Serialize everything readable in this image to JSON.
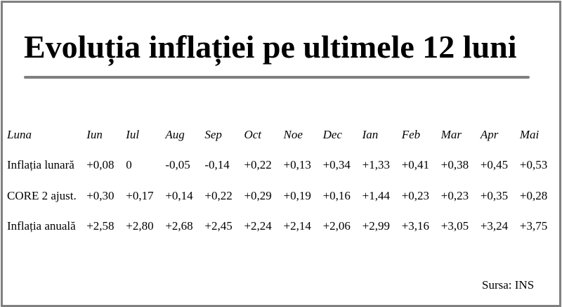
{
  "title": "Evoluția inflației pe ultimele 12 luni",
  "table": {
    "header_label": "Luna",
    "months": [
      "Iun",
      "Iul",
      "Aug",
      "Sep",
      "Oct",
      "Noe",
      "Dec",
      "Ian",
      "Feb",
      "Mar",
      "Apr",
      "Mai"
    ],
    "rows": [
      {
        "label": "Inflația lunară",
        "values": [
          "+0,08",
          "0",
          "-0,05",
          "-0,14",
          "+0,22",
          "+0,13",
          "+0,34",
          "+1,33",
          "+0,41",
          "+0,38",
          "+0,45",
          "+0,53"
        ]
      },
      {
        "label": "CORE 2 ajust.",
        "values": [
          "+0,30",
          "+0,17",
          "+0,14",
          "+0,22",
          "+0,29",
          "+0,19",
          "+0,16",
          "+1,44",
          "+0,23",
          "+0,23",
          "+0,35",
          "+0,28"
        ]
      },
      {
        "label": "Inflația anuală",
        "values": [
          "+2,58",
          "+2,80",
          "+2,68",
          "+2,45",
          "+2,24",
          "+2,14",
          "+2,06",
          "+2,99",
          "+3,16",
          "+3,05",
          "+3,24",
          "+3,75"
        ]
      }
    ]
  },
  "source": "Sursa: INS",
  "colors": {
    "frame_border": "#808080",
    "title_rule": "#808080",
    "text": "#000000",
    "background": "#ffffff"
  }
}
